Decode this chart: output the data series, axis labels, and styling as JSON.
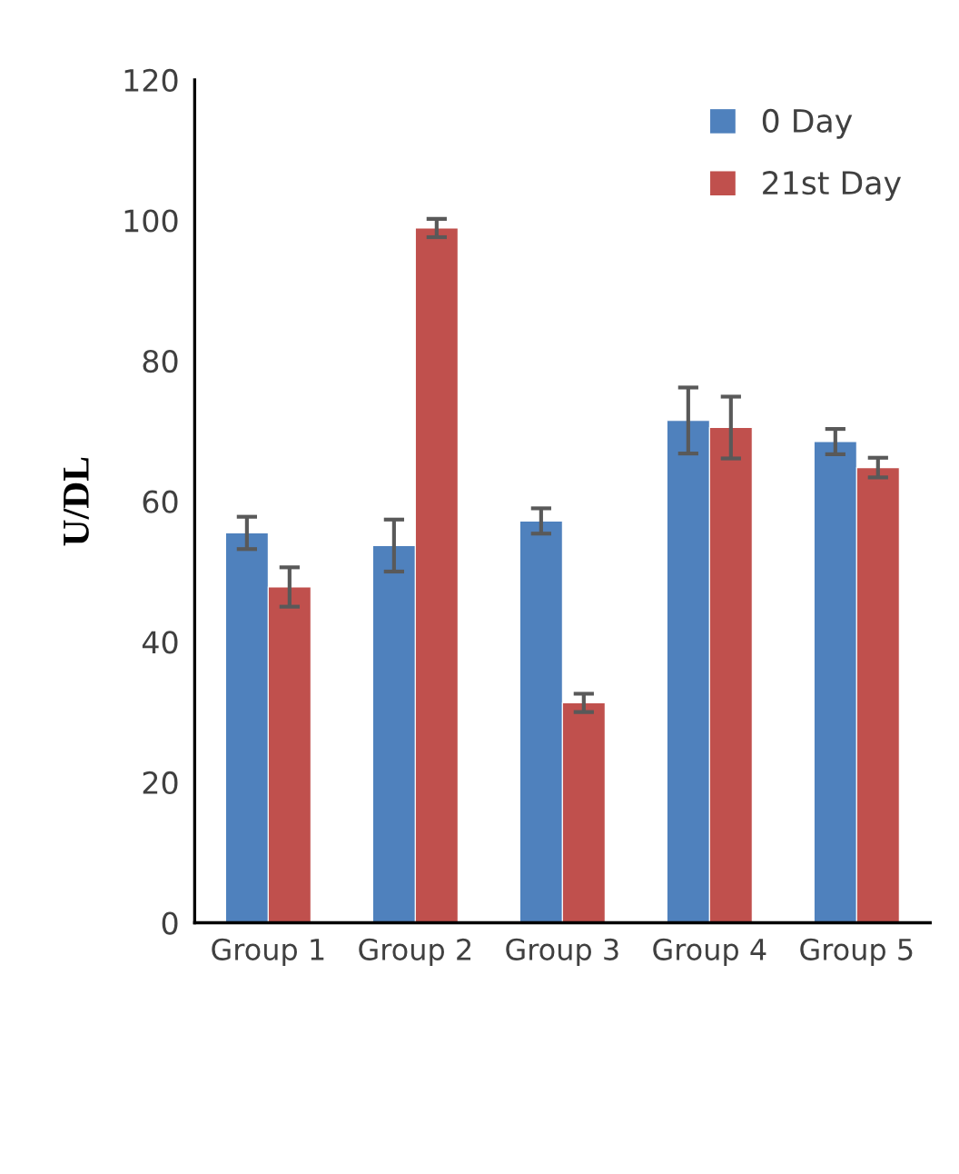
{
  "chart_data": {
    "type": "bar",
    "ylabel": "U/DL",
    "categories": [
      "Group 1",
      "Group 2",
      "Group 3",
      "Group 4",
      "Group 5"
    ],
    "series": [
      {
        "name": "0 Day",
        "color": "#4f81bd",
        "values": [
          55.5,
          53.7,
          57.2,
          71.5,
          68.5
        ],
        "errors": [
          2.3,
          3.7,
          1.8,
          4.7,
          1.8
        ]
      },
      {
        "name": "21st Day",
        "color": "#c0504d",
        "values": [
          47.8,
          98.9,
          31.3,
          70.5,
          64.8
        ],
        "errors": [
          2.8,
          1.3,
          1.3,
          4.4,
          1.4
        ]
      }
    ],
    "ylim": [
      0,
      120
    ],
    "yticks": [
      0,
      20,
      40,
      60,
      80,
      100,
      120
    ],
    "grid": false,
    "legend": "top right"
  }
}
